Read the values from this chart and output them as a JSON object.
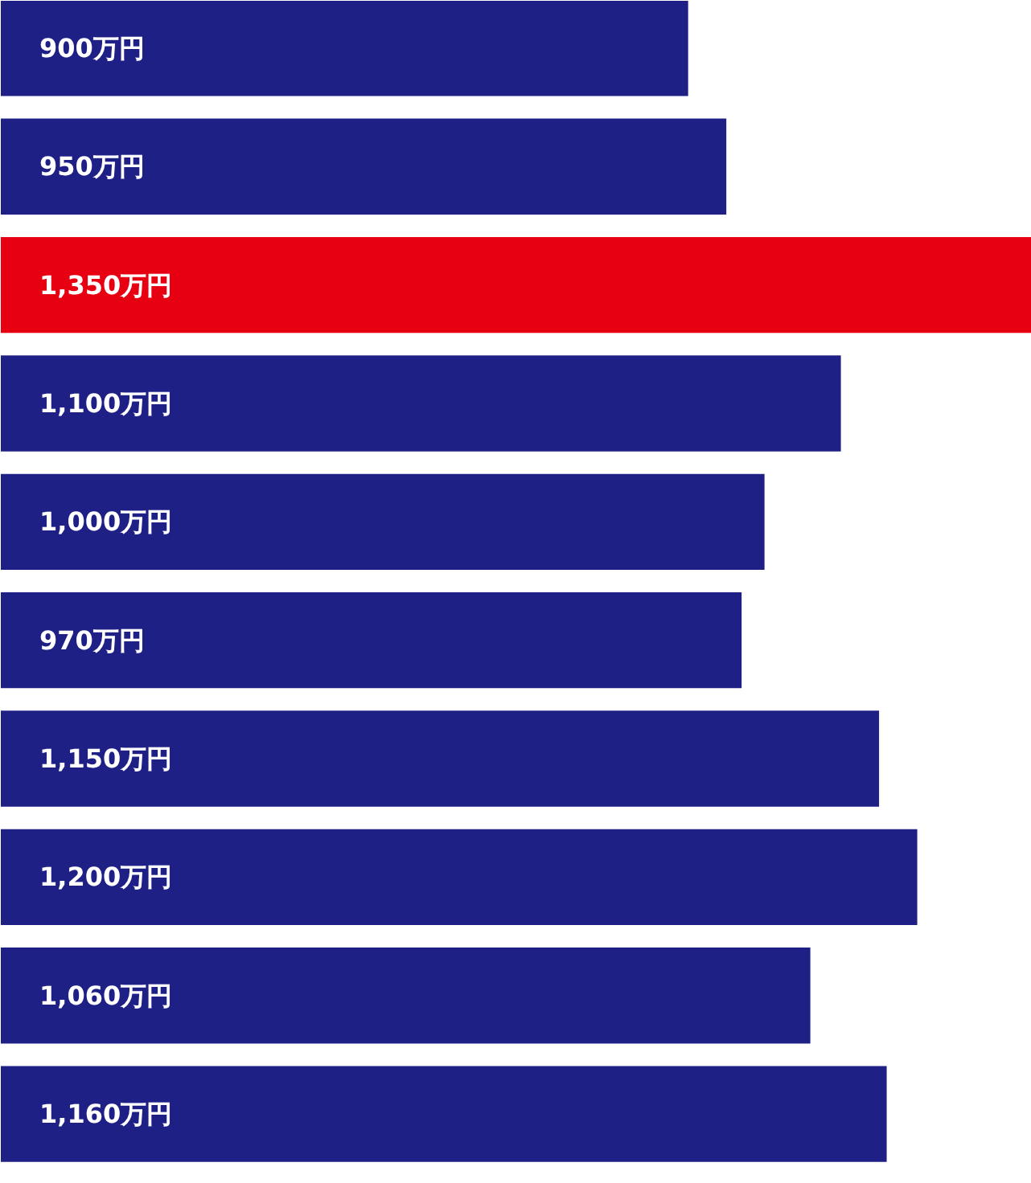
{
  "chart_data": {
    "type": "bar",
    "orientation": "horizontal",
    "categories": [
      null,
      null,
      null,
      null,
      null,
      null,
      null,
      null,
      null,
      null
    ],
    "values": [
      900,
      950,
      1350,
      1100,
      1000,
      970,
      1150,
      1200,
      1060,
      1160
    ],
    "colors": [
      "#1e2086",
      "#1e2086",
      "#e60012",
      "#1e2086",
      "#1e2086",
      "#1e2086",
      "#1e2086",
      "#1e2086",
      "#1e2086",
      "#1e2086"
    ],
    "value_labels": [
      "900万円",
      "950万円",
      "1,350万円",
      "1,100万円",
      "1,000万円",
      "970万円",
      "1,150万円",
      "1,200万円",
      "1,060万円",
      "1,160万円"
    ],
    "xlim": [
      0,
      1350
    ],
    "tick_labels": false
  }
}
